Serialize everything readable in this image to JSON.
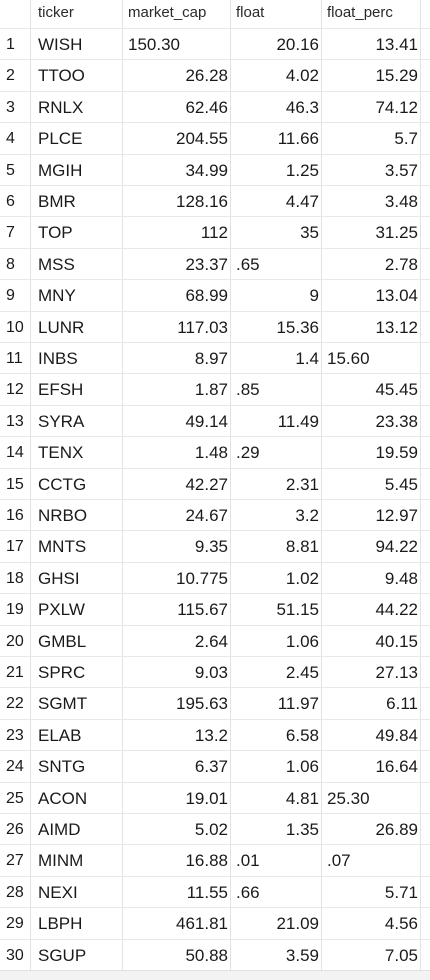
{
  "headers": [
    "ticker",
    "market_cap",
    "float",
    "float_perc"
  ],
  "rows": [
    {
      "index": "1",
      "ticker": "WISH",
      "market_cap": "150.30",
      "market_cap_align": "left",
      "float": "20.16",
      "float_align": "right",
      "float_perc": "13.41",
      "float_perc_align": "right"
    },
    {
      "index": "2",
      "ticker": "TTOO",
      "market_cap": "26.28",
      "market_cap_align": "right",
      "float": "4.02",
      "float_align": "right",
      "float_perc": "15.29",
      "float_perc_align": "right"
    },
    {
      "index": "3",
      "ticker": "RNLX",
      "market_cap": "62.46",
      "market_cap_align": "right",
      "float": "46.3",
      "float_align": "right",
      "float_perc": "74.12",
      "float_perc_align": "right"
    },
    {
      "index": "4",
      "ticker": "PLCE",
      "market_cap": "204.55",
      "market_cap_align": "right",
      "float": "11.66",
      "float_align": "right",
      "float_perc": "5.7",
      "float_perc_align": "right"
    },
    {
      "index": "5",
      "ticker": "MGIH",
      "market_cap": "34.99",
      "market_cap_align": "right",
      "float": "1.25",
      "float_align": "right",
      "float_perc": "3.57",
      "float_perc_align": "right"
    },
    {
      "index": "6",
      "ticker": "BMR",
      "market_cap": "128.16",
      "market_cap_align": "right",
      "float": "4.47",
      "float_align": "right",
      "float_perc": "3.48",
      "float_perc_align": "right"
    },
    {
      "index": "7",
      "ticker": "TOP",
      "market_cap": "112",
      "market_cap_align": "right",
      "float": "35",
      "float_align": "right",
      "float_perc": "31.25",
      "float_perc_align": "right"
    },
    {
      "index": "8",
      "ticker": "MSS",
      "market_cap": "23.37",
      "market_cap_align": "right",
      "float": ".65",
      "float_align": "left",
      "float_perc": "2.78",
      "float_perc_align": "right"
    },
    {
      "index": "9",
      "ticker": "MNY",
      "market_cap": "68.99",
      "market_cap_align": "right",
      "float": "9",
      "float_align": "right",
      "float_perc": "13.04",
      "float_perc_align": "right"
    },
    {
      "index": "10",
      "ticker": "LUNR",
      "market_cap": "117.03",
      "market_cap_align": "right",
      "float": "15.36",
      "float_align": "right",
      "float_perc": "13.12",
      "float_perc_align": "right"
    },
    {
      "index": "11",
      "ticker": "INBS",
      "market_cap": "8.97",
      "market_cap_align": "right",
      "float": "1.4",
      "float_align": "right",
      "float_perc": "15.60",
      "float_perc_align": "left"
    },
    {
      "index": "12",
      "ticker": "EFSH",
      "market_cap": "1.87",
      "market_cap_align": "right",
      "float": ".85",
      "float_align": "left",
      "float_perc": "45.45",
      "float_perc_align": "right"
    },
    {
      "index": "13",
      "ticker": "SYRA",
      "market_cap": "49.14",
      "market_cap_align": "right",
      "float": "11.49",
      "float_align": "right",
      "float_perc": "23.38",
      "float_perc_align": "right"
    },
    {
      "index": "14",
      "ticker": "TENX",
      "market_cap": "1.48",
      "market_cap_align": "right",
      "float": ".29",
      "float_align": "left",
      "float_perc": "19.59",
      "float_perc_align": "right"
    },
    {
      "index": "15",
      "ticker": "CCTG",
      "market_cap": "42.27",
      "market_cap_align": "right",
      "float": "2.31",
      "float_align": "right",
      "float_perc": "5.45",
      "float_perc_align": "right"
    },
    {
      "index": "16",
      "ticker": "NRBO",
      "market_cap": "24.67",
      "market_cap_align": "right",
      "float": "3.2",
      "float_align": "right",
      "float_perc": "12.97",
      "float_perc_align": "right"
    },
    {
      "index": "17",
      "ticker": "MNTS",
      "market_cap": "9.35",
      "market_cap_align": "right",
      "float": "8.81",
      "float_align": "right",
      "float_perc": "94.22",
      "float_perc_align": "right"
    },
    {
      "index": "18",
      "ticker": "GHSI",
      "market_cap": "10.775",
      "market_cap_align": "right",
      "float": "1.02",
      "float_align": "right",
      "float_perc": "9.48",
      "float_perc_align": "right"
    },
    {
      "index": "19",
      "ticker": "PXLW",
      "market_cap": "115.67",
      "market_cap_align": "right",
      "float": "51.15",
      "float_align": "right",
      "float_perc": "44.22",
      "float_perc_align": "right"
    },
    {
      "index": "20",
      "ticker": "GMBL",
      "market_cap": "2.64",
      "market_cap_align": "right",
      "float": "1.06",
      "float_align": "right",
      "float_perc": "40.15",
      "float_perc_align": "right"
    },
    {
      "index": "21",
      "ticker": "SPRC",
      "market_cap": "9.03",
      "market_cap_align": "right",
      "float": "2.45",
      "float_align": "right",
      "float_perc": "27.13",
      "float_perc_align": "right"
    },
    {
      "index": "22",
      "ticker": "SGMT",
      "market_cap": "195.63",
      "market_cap_align": "right",
      "float": "11.97",
      "float_align": "right",
      "float_perc": "6.11",
      "float_perc_align": "right"
    },
    {
      "index": "23",
      "ticker": "ELAB",
      "market_cap": "13.2",
      "market_cap_align": "right",
      "float": "6.58",
      "float_align": "right",
      "float_perc": "49.84",
      "float_perc_align": "right"
    },
    {
      "index": "24",
      "ticker": "SNTG",
      "market_cap": "6.37",
      "market_cap_align": "right",
      "float": "1.06",
      "float_align": "right",
      "float_perc": "16.64",
      "float_perc_align": "right"
    },
    {
      "index": "25",
      "ticker": "ACON",
      "market_cap": "19.01",
      "market_cap_align": "right",
      "float": "4.81",
      "float_align": "right",
      "float_perc": "25.30",
      "float_perc_align": "left"
    },
    {
      "index": "26",
      "ticker": "AIMD",
      "market_cap": "5.02",
      "market_cap_align": "right",
      "float": "1.35",
      "float_align": "right",
      "float_perc": "26.89",
      "float_perc_align": "right"
    },
    {
      "index": "27",
      "ticker": "MINM",
      "market_cap": "16.88",
      "market_cap_align": "right",
      "float": ".01",
      "float_align": "left",
      "float_perc": ".07",
      "float_perc_align": "left"
    },
    {
      "index": "28",
      "ticker": "NEXI",
      "market_cap": "11.55",
      "market_cap_align": "right",
      "float": ".66",
      "float_align": "left",
      "float_perc": "5.71",
      "float_perc_align": "right"
    },
    {
      "index": "29",
      "ticker": "LBPH",
      "market_cap": "461.81",
      "market_cap_align": "right",
      "float": "21.09",
      "float_align": "right",
      "float_perc": "4.56",
      "float_perc_align": "right"
    },
    {
      "index": "30",
      "ticker": "SGUP",
      "market_cap": "50.88",
      "market_cap_align": "right",
      "float": "3.59",
      "float_align": "right",
      "float_perc": "7.05",
      "float_perc_align": "right"
    }
  ]
}
